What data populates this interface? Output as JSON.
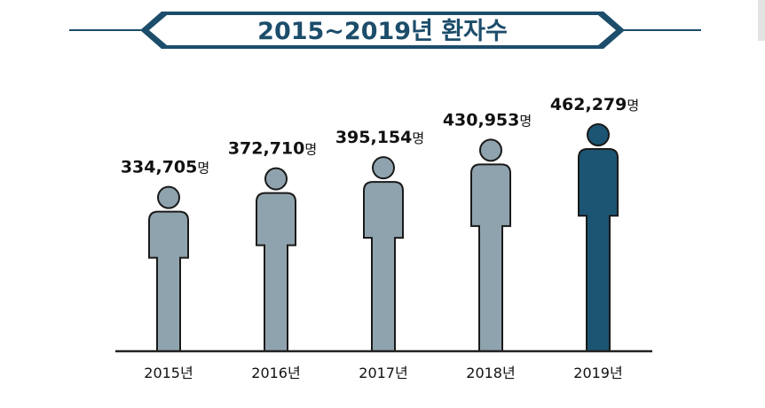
{
  "title": "2015~2019년 환자수",
  "colors": {
    "accent": "#1c5573",
    "figure": "#8fa3ae",
    "outline": "#1a1a1a",
    "title_text": "#1c4d6b",
    "banner_border": "#1c4d6b"
  },
  "chart_data": {
    "type": "bar",
    "style": "pictograph (person figures)",
    "title": "2015~2019년 환자수",
    "categories": [
      "2015년",
      "2016년",
      "2017년",
      "2018년",
      "2019년"
    ],
    "values": [
      334705,
      372710,
      395154,
      430953,
      462279
    ],
    "value_labels": [
      "334,705",
      "372,710",
      "395,154",
      "430,953",
      "462,279"
    ],
    "unit": "명",
    "highlight_index": 4
  }
}
